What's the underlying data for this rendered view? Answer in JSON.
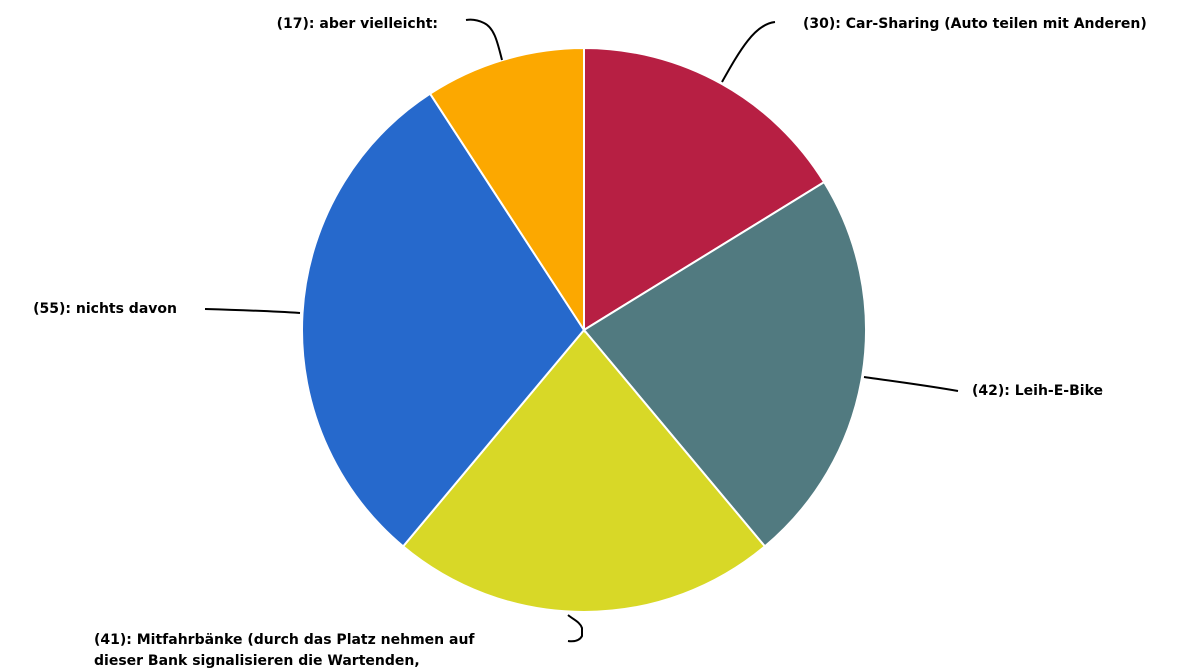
{
  "chart_data": {
    "type": "pie",
    "title": "",
    "slices": [
      {
        "label": "(30): Car-Sharing (Auto teilen mit Anderen)",
        "value": 30,
        "color": "#b71f43"
      },
      {
        "label": "(42): Leih-E-Bike",
        "value": 42,
        "color": "#517a80"
      },
      {
        "label": "(41): Mitfahrbänke (durch das Platz nehmen auf",
        "label_line2": "dieser Bank signalisieren die Wartenden,",
        "value": 41,
        "color": "#d8d827"
      },
      {
        "label": "(55): nichts davon",
        "value": 55,
        "color": "#2669cc"
      },
      {
        "label": "(17): aber vielleicht:",
        "value": 17,
        "color": "#fca800"
      }
    ],
    "start_angle": "12 o'clock",
    "direction": "clockwise",
    "legend": "none"
  }
}
